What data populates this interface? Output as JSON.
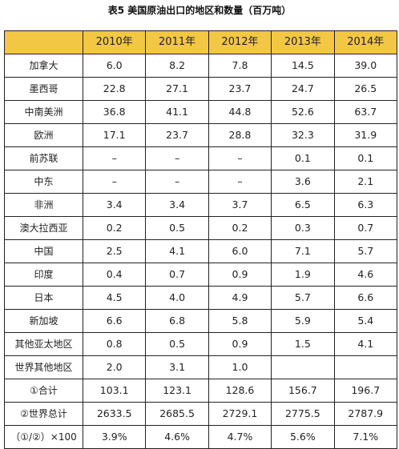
{
  "title": "表5  美国原油出口的地区和数量（百万吨）",
  "table": {
    "corner": "",
    "years": [
      "2010年",
      "2011年",
      "2012年",
      "2013年",
      "2014年"
    ],
    "rows": [
      {
        "region": "加拿大",
        "values": [
          "6.0",
          "8.2",
          "7.8",
          "14.5",
          "39.0"
        ]
      },
      {
        "region": "墨西哥",
        "values": [
          "22.8",
          "27.1",
          "23.7",
          "24.7",
          "26.5"
        ]
      },
      {
        "region": "中南美洲",
        "values": [
          "36.8",
          "41.1",
          "44.8",
          "52.6",
          "63.7"
        ]
      },
      {
        "region": "欧洲",
        "values": [
          "17.1",
          "23.7",
          "28.8",
          "32.3",
          "31.9"
        ]
      },
      {
        "region": "前苏联",
        "values": [
          "–",
          "–",
          "–",
          "0.1",
          "0.1"
        ]
      },
      {
        "region": "中东",
        "values": [
          "–",
          "–",
          "–",
          "3.6",
          "2.1"
        ]
      },
      {
        "region": "非洲",
        "values": [
          "3.4",
          "3.4",
          "3.7",
          "6.5",
          "6.3"
        ]
      },
      {
        "region": "澳大拉西亚",
        "values": [
          "0.2",
          "0.5",
          "0.2",
          "0.3",
          "0.7"
        ]
      },
      {
        "region": "中国",
        "values": [
          "2.5",
          "4.1",
          "6.0",
          "7.1",
          "5.7"
        ]
      },
      {
        "region": "印度",
        "values": [
          "0.4",
          "0.7",
          "0.9",
          "1.9",
          "4.6"
        ]
      },
      {
        "region": "日本",
        "values": [
          "4.5",
          "4.0",
          "4.9",
          "5.7",
          "6.6"
        ]
      },
      {
        "region": "新加坡",
        "values": [
          "6.6",
          "6.8",
          "5.8",
          "5.9",
          "5.4"
        ]
      },
      {
        "region": "其他亚太地区",
        "values": [
          "0.8",
          "0.5",
          "0.9",
          "1.5",
          "4.1"
        ]
      },
      {
        "region": "世界其他地区",
        "values": [
          "2.0",
          "3.1",
          "1.0",
          "",
          ""
        ]
      },
      {
        "region": "①合计",
        "values": [
          "103.1",
          "123.1",
          "128.6",
          "156.7",
          "196.7"
        ]
      },
      {
        "region": "②世界总计",
        "values": [
          "2633.5",
          "2685.5",
          "2729.1",
          "2775.5",
          "2787.9"
        ]
      },
      {
        "region": "（①/②）×100",
        "values": [
          "3.9%",
          "4.6%",
          "4.7%",
          "5.6%",
          "7.1%"
        ]
      }
    ]
  },
  "colors": {
    "header_fill": "#f2c744",
    "border": "#222222"
  }
}
